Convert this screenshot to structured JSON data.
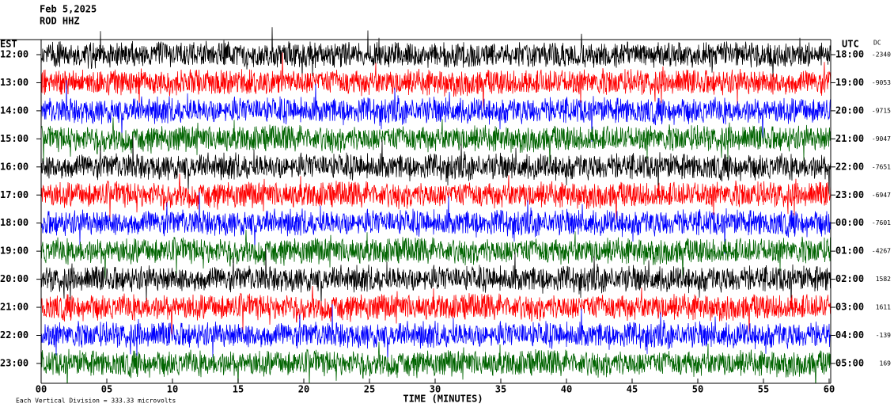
{
  "chart_data": {
    "type": "helicorder",
    "title": "Feb 5,2025",
    "subtitle": "ROD HHZ",
    "left_axis_label": "EST",
    "right_axis_label": "UTC",
    "dc_label": "DC",
    "x_label": "TIME (MINUTES)",
    "footnote": "Each Vertical Division = 333.33 microvolts",
    "xlim": [
      0,
      60
    ],
    "xticks": [
      {
        "value": 0,
        "label": "00"
      },
      {
        "value": 5,
        "label": "05"
      },
      10,
      15,
      20,
      25,
      30,
      35,
      40,
      45,
      50,
      55,
      60
    ],
    "rows": {
      "est": [
        "12:00",
        "13:00",
        "14:00",
        "15:00",
        "16:00",
        "17:00",
        "18:00",
        "19:00",
        "20:00",
        "21:00",
        "22:00",
        "23:00"
      ],
      "utc": [
        "18:00",
        "19:00",
        "20:00",
        "21:00",
        "22:00",
        "23:00",
        "00:00",
        "01:00",
        "02:00",
        "03:00",
        "04:00",
        "05:00"
      ],
      "dc": [
        "-2340",
        "-9053",
        "-9715",
        "-9047",
        "-7651",
        "-6947",
        "-7601",
        "-4267",
        "1582",
        "1611",
        "-139",
        "169"
      ],
      "colors": [
        "#000000",
        "#ff0000",
        "#0000ff",
        "#006400",
        "#000000",
        "#ff0000",
        "#0000ff",
        "#006400",
        "#000000",
        "#ff0000",
        "#0000ff",
        "#006400"
      ]
    }
  }
}
